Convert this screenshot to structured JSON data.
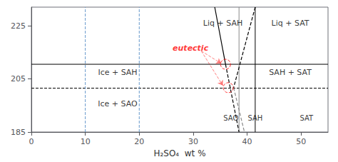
{
  "chart_data": {
    "type": "line",
    "xlabel": "H₂SO₄  wt %",
    "xlim": [
      0,
      55
    ],
    "ylim": [
      185,
      232
    ],
    "xticks": [
      0,
      10,
      20,
      30,
      40,
      50
    ],
    "yticks": [
      185,
      205,
      225
    ],
    "grid": false,
    "hlines": [
      {
        "y": 210.5,
        "color": "black",
        "line_style": "solid"
      },
      {
        "y": 201.5,
        "color": "black",
        "line_style": "dashed"
      }
    ],
    "vlines": [
      {
        "x": 10,
        "color": "#6699cc",
        "line_style": "dashed"
      },
      {
        "x": 20,
        "color": "#6699cc",
        "line_style": "dashed"
      },
      {
        "x": 38.5,
        "color": "#888888",
        "line_style": "solid"
      },
      {
        "x": 41.5,
        "color": "black",
        "line_style": "solid"
      }
    ],
    "series": [
      {
        "x": [
          34.0,
          36.0
        ],
        "values": [
          232,
          210.5
        ],
        "color": "black",
        "line_style": "solid"
      },
      {
        "x": [
          36.0,
          38.5
        ],
        "values": [
          210.5,
          185
        ],
        "color": "black",
        "line_style": "dashed"
      },
      {
        "x": [
          41.5,
          37.5
        ],
        "values": [
          232,
          201.7
        ],
        "color": "black",
        "line_style": "dashed"
      },
      {
        "x": [
          37.5,
          39.5
        ],
        "values": [
          201.7,
          185
        ],
        "color": "#888888",
        "line_style": "dashed"
      }
    ],
    "annotations": [
      {
        "text": "Ice + SAH",
        "x": 16,
        "y": 207.5
      },
      {
        "text": "Ice + SAO",
        "x": 16,
        "y": 195.5
      },
      {
        "text": "SAH + SAT",
        "x": 48,
        "y": 207.5
      },
      {
        "text": "Liq + SAH",
        "x": 35.5,
        "y": 226
      },
      {
        "text": "Liq + SAT",
        "x": 48,
        "y": 226
      }
    ],
    "bottom_labels": [
      {
        "text": "SAO",
        "x": 37.0,
        "y": 189.0
      },
      {
        "text": "SAH",
        "x": 41.5,
        "y": 189.0
      },
      {
        "text": "SAT",
        "x": 51.0,
        "y": 189.0
      }
    ],
    "eutectic_label": {
      "text": "eutectic",
      "x": 29.5,
      "y": 216.5,
      "color": "red"
    },
    "eutectic_points": {
      "x": [
        36.0,
        36.5
      ],
      "values": [
        210.5,
        201.7
      ],
      "color": "red",
      "marker": "circle",
      "line_style": "dashed"
    },
    "arrows": [
      {
        "start": [
          31.5,
          215.5
        ],
        "end": [
          35.2,
          210.8
        ],
        "color": "red",
        "line_style": "dashed"
      },
      {
        "start": [
          31.5,
          215.5
        ],
        "end": [
          35.5,
          202.5
        ],
        "color": "red",
        "line_style": "dashed"
      }
    ]
  }
}
